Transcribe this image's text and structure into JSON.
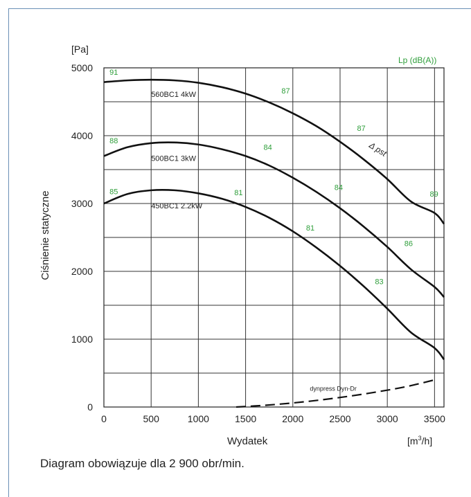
{
  "chart_data": {
    "type": "line",
    "y_unit": "[Pa]",
    "x_unit": "[m³/h]",
    "xlabel": "Wydatek",
    "ylabel": "Ciśnienie statyczne",
    "noise_label": "Lp (dB(A))",
    "pressure_label": "Δ pst",
    "xlim": [
      0,
      3600
    ],
    "ylim": [
      0,
      5000
    ],
    "x_ticks": [
      0,
      500,
      1000,
      1500,
      2000,
      2500,
      3000,
      3500
    ],
    "y_ticks": [
      0,
      1000,
      2000,
      3000,
      4000,
      5000
    ],
    "grid": true,
    "series": [
      {
        "name": "560BC1 4kW",
        "x": [
          0,
          250,
          500,
          750,
          1000,
          1250,
          1500,
          1750,
          2000,
          2250,
          2500,
          2750,
          3000,
          3250,
          3500,
          3600
        ],
        "y": [
          4790,
          4815,
          4825,
          4815,
          4780,
          4715,
          4620,
          4490,
          4330,
          4140,
          3910,
          3650,
          3360,
          3030,
          2860,
          2700
        ],
        "noise_labels": [
          {
            "x": 60,
            "y": 4900,
            "text": "91"
          },
          {
            "x": 1880,
            "y": 4620,
            "text": "87"
          },
          {
            "x": 2680,
            "y": 4070,
            "text": "87"
          },
          {
            "x": 3450,
            "y": 3100,
            "text": "89"
          }
        ]
      },
      {
        "name": "500BC1 3kW",
        "x": [
          0,
          250,
          500,
          750,
          1000,
          1250,
          1500,
          1750,
          2000,
          2250,
          2500,
          2750,
          3000,
          3250,
          3500,
          3600
        ],
        "y": [
          3700,
          3830,
          3890,
          3900,
          3870,
          3800,
          3700,
          3560,
          3380,
          3170,
          2930,
          2660,
          2360,
          2030,
          1770,
          1620
        ],
        "noise_labels": [
          {
            "x": 60,
            "y": 3890,
            "text": "88"
          },
          {
            "x": 1690,
            "y": 3790,
            "text": "84"
          },
          {
            "x": 2440,
            "y": 3200,
            "text": "84"
          },
          {
            "x": 3180,
            "y": 2370,
            "text": "86"
          }
        ]
      },
      {
        "name": "450BC1 2.2kW",
        "x": [
          0,
          250,
          500,
          750,
          1000,
          1250,
          1500,
          1750,
          2000,
          2250,
          2500,
          2750,
          3000,
          3250,
          3500,
          3600
        ],
        "y": [
          3000,
          3140,
          3195,
          3195,
          3150,
          3070,
          2950,
          2790,
          2590,
          2350,
          2080,
          1780,
          1450,
          1100,
          870,
          700
        ],
        "noise_labels": [
          {
            "x": 60,
            "y": 3140,
            "text": "85"
          },
          {
            "x": 1380,
            "y": 3120,
            "text": "81"
          },
          {
            "x": 2140,
            "y": 2600,
            "text": "81"
          },
          {
            "x": 2870,
            "y": 1810,
            "text": "83"
          }
        ]
      },
      {
        "name": "dynpress Dyn-Dr",
        "dashed": true,
        "x": [
          1400,
          1700,
          2000,
          2300,
          2600,
          2900,
          3200,
          3500
        ],
        "y": [
          0,
          25,
          60,
          105,
          160,
          225,
          300,
          400
        ]
      }
    ]
  },
  "note": "Diagram obowiązuje dla 2 900 obr/min."
}
